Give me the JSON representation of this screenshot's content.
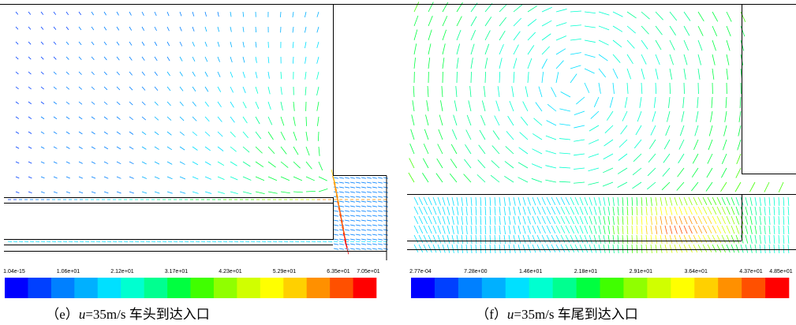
{
  "panels": [
    {
      "colorbar": {
        "labels": [
          "1.04e-15",
          "1.06e+01",
          "2.12e+01",
          "3.17e+01",
          "4.23e+01",
          "5.29e+01",
          "6.35e+01",
          "7.05e+01"
        ]
      },
      "caption": {
        "prefix": "（e）",
        "variable": "u",
        "text": "=35m/s 车头到达入口"
      }
    },
    {
      "colorbar": {
        "labels": [
          "2.77e-04",
          "7.28e+00",
          "1.46e+01",
          "2.18e+01",
          "2.91e+01",
          "3.64e+01",
          "4.37e+01",
          "4.85e+01"
        ]
      },
      "caption": {
        "prefix": "（f）",
        "variable": "u",
        "text": "=35m/s 车尾到达入口"
      }
    }
  ],
  "colorbar_colors": [
    "#0000ff",
    "#0040ff",
    "#0080ff",
    "#00b0ff",
    "#00e0ff",
    "#00ffd0",
    "#00ff90",
    "#00ff40",
    "#40ff00",
    "#90ff00",
    "#d0ff00",
    "#ffff00",
    "#ffd000",
    "#ff9000",
    "#ff5000",
    "#ff0000"
  ]
}
